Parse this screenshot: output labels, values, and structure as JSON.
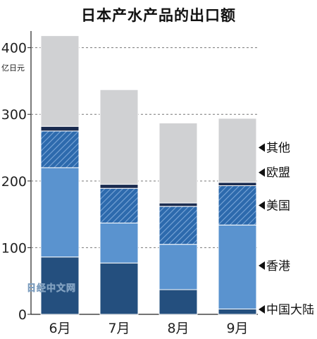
{
  "chart_data": {
    "type": "bar",
    "stacked": true,
    "title": "日本产水产品的出口额",
    "ylabel": "亿日元",
    "ylim": [
      0,
      420
    ],
    "yticks": [
      0,
      100,
      200,
      300,
      400
    ],
    "grid": true,
    "legend_placement": "right",
    "categories": [
      "6月",
      "7月",
      "8月",
      "9月"
    ],
    "series": [
      {
        "name": "中国大陆",
        "color": "#244f7e",
        "pattern": "solid",
        "values": [
          86,
          77,
          37,
          8
        ]
      },
      {
        "name": "香港",
        "color": "#5a93cf",
        "pattern": "solid",
        "values": [
          134,
          60,
          68,
          126
        ]
      },
      {
        "name": "美国",
        "color": "#2d6aad",
        "pattern": "hatch",
        "values": [
          55,
          52,
          57,
          59
        ]
      },
      {
        "name": "欧盟",
        "color": "#1a2b4f",
        "pattern": "solid",
        "values": [
          7,
          6,
          5,
          5
        ]
      },
      {
        "name": "其他",
        "color": "#d0d1d3",
        "pattern": "solid",
        "values": [
          136,
          142,
          120,
          96
        ]
      }
    ],
    "watermark": "日经中文网"
  }
}
